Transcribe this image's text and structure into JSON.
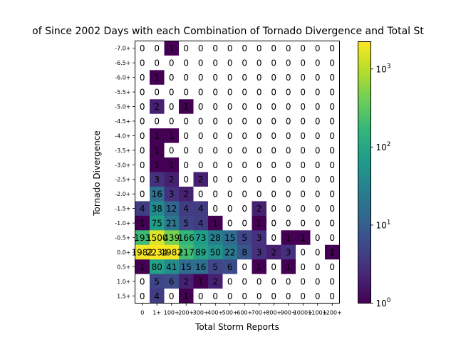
{
  "chart_data": {
    "type": "heatmap",
    "title": "of Since 2002 Days with each Combination of Tornado Divergence and Total St",
    "xlabel": "Total Storm Reports",
    "ylabel": "Tornado Divergence",
    "x_categories": [
      "0",
      "1+",
      "100+",
      "200+",
      "300+",
      "400+",
      "500+",
      "600+",
      "700+",
      "800+",
      "900+",
      "1000+",
      "1100+",
      "1200+"
    ],
    "y_categories": [
      "-7.0+",
      "-6.5+",
      "-6.0+",
      "-5.5+",
      "-5.0+",
      "-4.5+",
      "-4.0+",
      "-3.5+",
      "-3.0+",
      "-2.5+",
      "-2.0+",
      "-1.5+",
      "-1.0+",
      "-0.5+",
      "0.0+",
      "0.5+",
      "1.0+",
      "1.5+"
    ],
    "values": [
      [
        0,
        0,
        1,
        0,
        0,
        0,
        0,
        0,
        0,
        0,
        0,
        0,
        0,
        0
      ],
      [
        0,
        0,
        0,
        0,
        0,
        0,
        0,
        0,
        0,
        0,
        0,
        0,
        0,
        0
      ],
      [
        0,
        1,
        0,
        0,
        0,
        0,
        0,
        0,
        0,
        0,
        0,
        0,
        0,
        0
      ],
      [
        0,
        0,
        0,
        0,
        0,
        0,
        0,
        0,
        0,
        0,
        0,
        0,
        0,
        0
      ],
      [
        0,
        2,
        0,
        1,
        0,
        0,
        0,
        0,
        0,
        0,
        0,
        0,
        0,
        0
      ],
      [
        0,
        0,
        0,
        0,
        0,
        0,
        0,
        0,
        0,
        0,
        0,
        0,
        0,
        0
      ],
      [
        0,
        1,
        1,
        0,
        0,
        0,
        0,
        0,
        0,
        0,
        0,
        0,
        0,
        0
      ],
      [
        0,
        1,
        0,
        0,
        0,
        0,
        0,
        0,
        0,
        0,
        0,
        0,
        0,
        0
      ],
      [
        0,
        1,
        1,
        0,
        0,
        0,
        0,
        0,
        0,
        0,
        0,
        0,
        0,
        0
      ],
      [
        0,
        3,
        2,
        0,
        2,
        0,
        0,
        0,
        0,
        0,
        0,
        0,
        0,
        0
      ],
      [
        0,
        16,
        3,
        2,
        0,
        0,
        0,
        0,
        0,
        0,
        0,
        0,
        0,
        0
      ],
      [
        4,
        38,
        12,
        4,
        4,
        0,
        0,
        0,
        2,
        0,
        0,
        0,
        0,
        0
      ],
      [
        1,
        75,
        21,
        5,
        4,
        1,
        0,
        0,
        1,
        0,
        0,
        0,
        0,
        0
      ],
      [
        193,
        1500,
        439,
        166,
        73,
        28,
        15,
        5,
        3,
        0,
        1,
        1,
        0,
        0
      ],
      [
        1982,
        2234,
        1982,
        217,
        89,
        50,
        22,
        8,
        3,
        2,
        3,
        0,
        0,
        1
      ],
      [
        1,
        80,
        41,
        15,
        16,
        5,
        6,
        0,
        1,
        0,
        1,
        0,
        0,
        0
      ],
      [
        0,
        5,
        6,
        2,
        1,
        2,
        0,
        0,
        0,
        0,
        0,
        0,
        0,
        0
      ],
      [
        0,
        4,
        0,
        1,
        0,
        0,
        0,
        0,
        0,
        0,
        0,
        0,
        0,
        0
      ]
    ],
    "color_scale": "log",
    "colormap": "viridis",
    "zero_color": "#ffffff",
    "vmin": 1,
    "vmax": 2234,
    "colorbar_ticks": [
      {
        "value": 1,
        "base": "10",
        "exp": "0"
      },
      {
        "value": 10,
        "base": "10",
        "exp": "1"
      },
      {
        "value": 100,
        "base": "10",
        "exp": "2"
      },
      {
        "value": 1000,
        "base": "10",
        "exp": "3"
      }
    ],
    "grid": false
  }
}
